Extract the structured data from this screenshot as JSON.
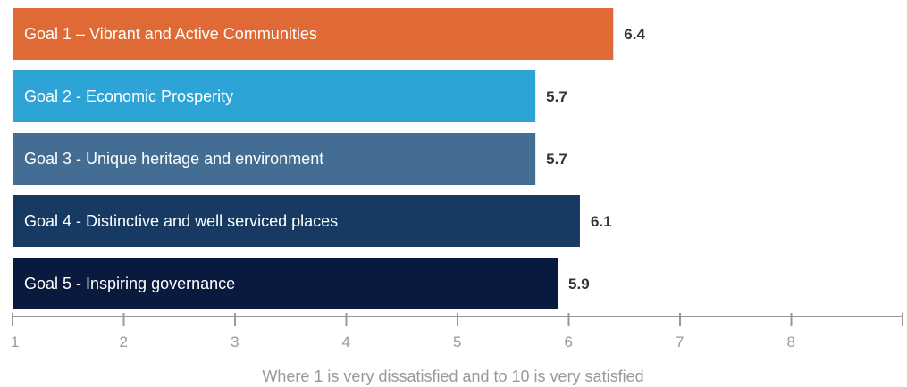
{
  "chart_data": {
    "type": "bar",
    "orientation": "horizontal",
    "categories": [
      "Goal 1 – Vibrant and Active Communities",
      "Goal 2 - Economic Prosperity",
      "Goal 3 - Unique heritage and environment",
      "Goal 4 - Distinctive and well serviced places",
      "Goal 5 - Inspiring governance"
    ],
    "values": [
      6.4,
      5.7,
      5.7,
      6.1,
      5.9
    ],
    "value_labels": [
      "6.4",
      "5.7",
      "5.7",
      "6.1",
      "5.9"
    ],
    "colors": [
      "#e06a35",
      "#2ea3d5",
      "#446d93",
      "#173a63",
      "#0a1a3f"
    ],
    "x_ticks": [
      "1",
      "2",
      "3",
      "4",
      "5",
      "6",
      "7",
      "8"
    ],
    "xlim": [
      1,
      9
    ],
    "xlabel": "Where 1 is very dissatisfied and to 10 is very satisfied",
    "axis_color": "#999999",
    "grid": false,
    "legend": "none"
  }
}
